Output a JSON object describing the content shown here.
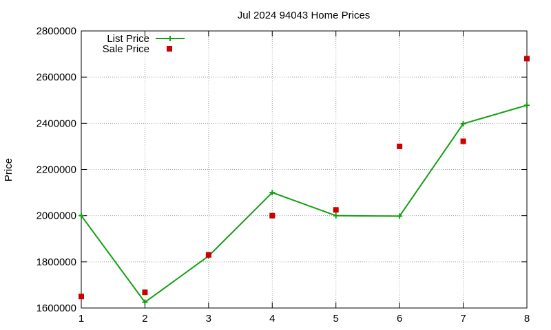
{
  "chart_data": {
    "type": "line",
    "title": "Jul 2024 94043 Home Prices",
    "ylabel": "Price",
    "xlabel": "",
    "x": [
      1,
      2,
      3,
      4,
      5,
      6,
      7,
      8
    ],
    "xlim": [
      1,
      8
    ],
    "ylim": [
      1600000,
      2800000
    ],
    "x_ticks": [
      "1",
      "2",
      "3",
      "4",
      "5",
      "6",
      "7",
      "8"
    ],
    "y_ticks": [
      "1600000",
      "1800000",
      "2000000",
      "2200000",
      "2400000",
      "2600000",
      "2800000"
    ],
    "grid": true,
    "legend_position": "top-left",
    "series": [
      {
        "name": "List Price",
        "style": "line-points",
        "color": "#11a011",
        "values": [
          2000000,
          1625000,
          1825000,
          2100000,
          2000000,
          1998000,
          2398000,
          2478000
        ]
      },
      {
        "name": "Sale Price",
        "style": "points",
        "color": "#cc0000",
        "values": [
          1650000,
          1668000,
          1830000,
          2000000,
          2025000,
          2300000,
          2322000,
          2680000
        ]
      }
    ]
  }
}
